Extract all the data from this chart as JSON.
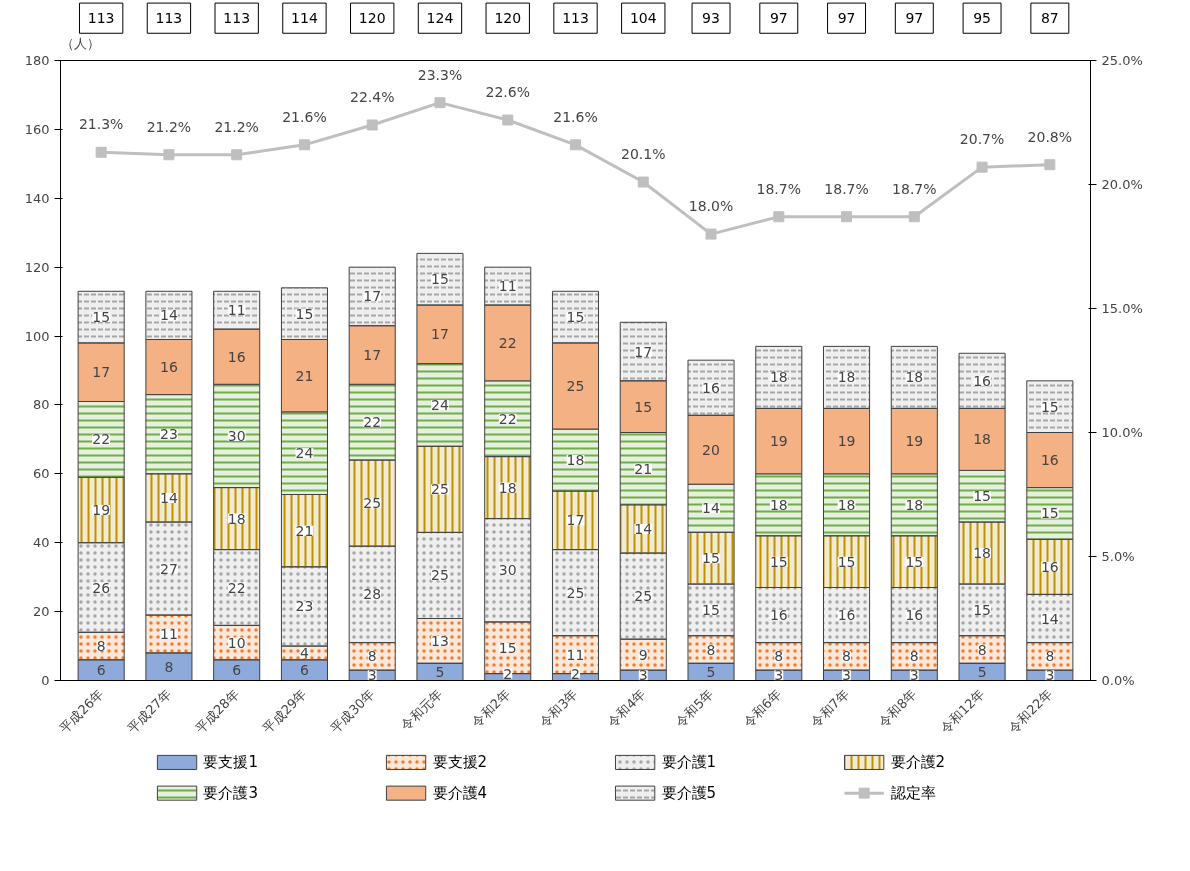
{
  "chart_data": {
    "type": "bar",
    "stacked": true,
    "data_labels": true,
    "legend": "bottom",
    "grid": false,
    "ylabel": "（人）",
    "categories": [
      "平成26年",
      "平成27年",
      "平成28年",
      "平成29年",
      "平成30年",
      "令和元年",
      "令和2年",
      "令和3年",
      "令和4年",
      "令和5年",
      "令和6年",
      "令和7年",
      "令和8年",
      "令和12年",
      "令和22年"
    ],
    "ylim": [
      0,
      180
    ],
    "yticks": [
      0,
      20,
      40,
      60,
      80,
      100,
      120,
      140,
      160,
      180
    ],
    "y2lim": [
      0,
      25
    ],
    "y2ticks": [
      {
        "value": 0,
        "label": "0.0%"
      },
      {
        "value": 5,
        "label": "5.0%"
      },
      {
        "value": 10,
        "label": "10.0%"
      },
      {
        "value": 15,
        "label": "15.0%"
      },
      {
        "value": 20,
        "label": "20.0%"
      },
      {
        "value": 25,
        "label": "25.0%"
      }
    ],
    "annotations": [
      "113",
      "113",
      "113",
      "114",
      "120",
      "124",
      "120",
      "113",
      "104",
      "93",
      "97",
      "97",
      "97",
      "95",
      "87"
    ],
    "series": [
      {
        "name": "要支援1",
        "color": "#8eaadb",
        "values": [
          6,
          8,
          6,
          6,
          3,
          5,
          2,
          2,
          3,
          5,
          3,
          3,
          3,
          5,
          3
        ]
      },
      {
        "name": "要支援2",
        "color": "#ed7d31",
        "values": [
          8,
          11,
          10,
          4,
          8,
          13,
          15,
          11,
          9,
          8,
          8,
          8,
          8,
          8,
          8
        ]
      },
      {
        "name": "要介護1",
        "color": "#a6a6a6",
        "values": [
          26,
          27,
          22,
          23,
          28,
          25,
          30,
          25,
          25,
          15,
          16,
          16,
          16,
          15,
          14
        ]
      },
      {
        "name": "要介護2",
        "color": "#bf9000",
        "values": [
          19,
          14,
          18,
          21,
          25,
          25,
          18,
          17,
          14,
          15,
          15,
          15,
          15,
          18,
          16
        ]
      },
      {
        "name": "要介護3",
        "color": "#70ad47",
        "values": [
          22,
          23,
          30,
          24,
          22,
          24,
          22,
          18,
          21,
          14,
          18,
          18,
          18,
          15,
          15
        ]
      },
      {
        "name": "要介護4",
        "color": "#f4b183",
        "values": [
          17,
          16,
          16,
          21,
          17,
          17,
          22,
          25,
          15,
          20,
          19,
          19,
          19,
          18,
          16
        ]
      },
      {
        "name": "要介護5",
        "color": "#a6a6a6",
        "values": [
          15,
          14,
          11,
          15,
          17,
          15,
          11,
          15,
          17,
          16,
          18,
          18,
          18,
          16,
          15
        ]
      },
      {
        "name": "認定率",
        "type": "line",
        "axis": "y2",
        "marker": "square",
        "color": "#bfbfbf",
        "values": [
          21.3,
          21.2,
          21.2,
          21.6,
          22.4,
          23.3,
          22.6,
          21.6,
          20.1,
          18.0,
          18.7,
          18.7,
          18.7,
          20.7,
          20.8
        ],
        "value_labels": [
          "21.3%",
          "21.2%",
          "21.2%",
          "21.6%",
          "22.4%",
          "23.3%",
          "22.6%",
          "21.6%",
          "20.1%",
          "18.0%",
          "18.7%",
          "18.7%",
          "18.7%",
          "20.7%",
          "20.8%"
        ]
      }
    ]
  }
}
